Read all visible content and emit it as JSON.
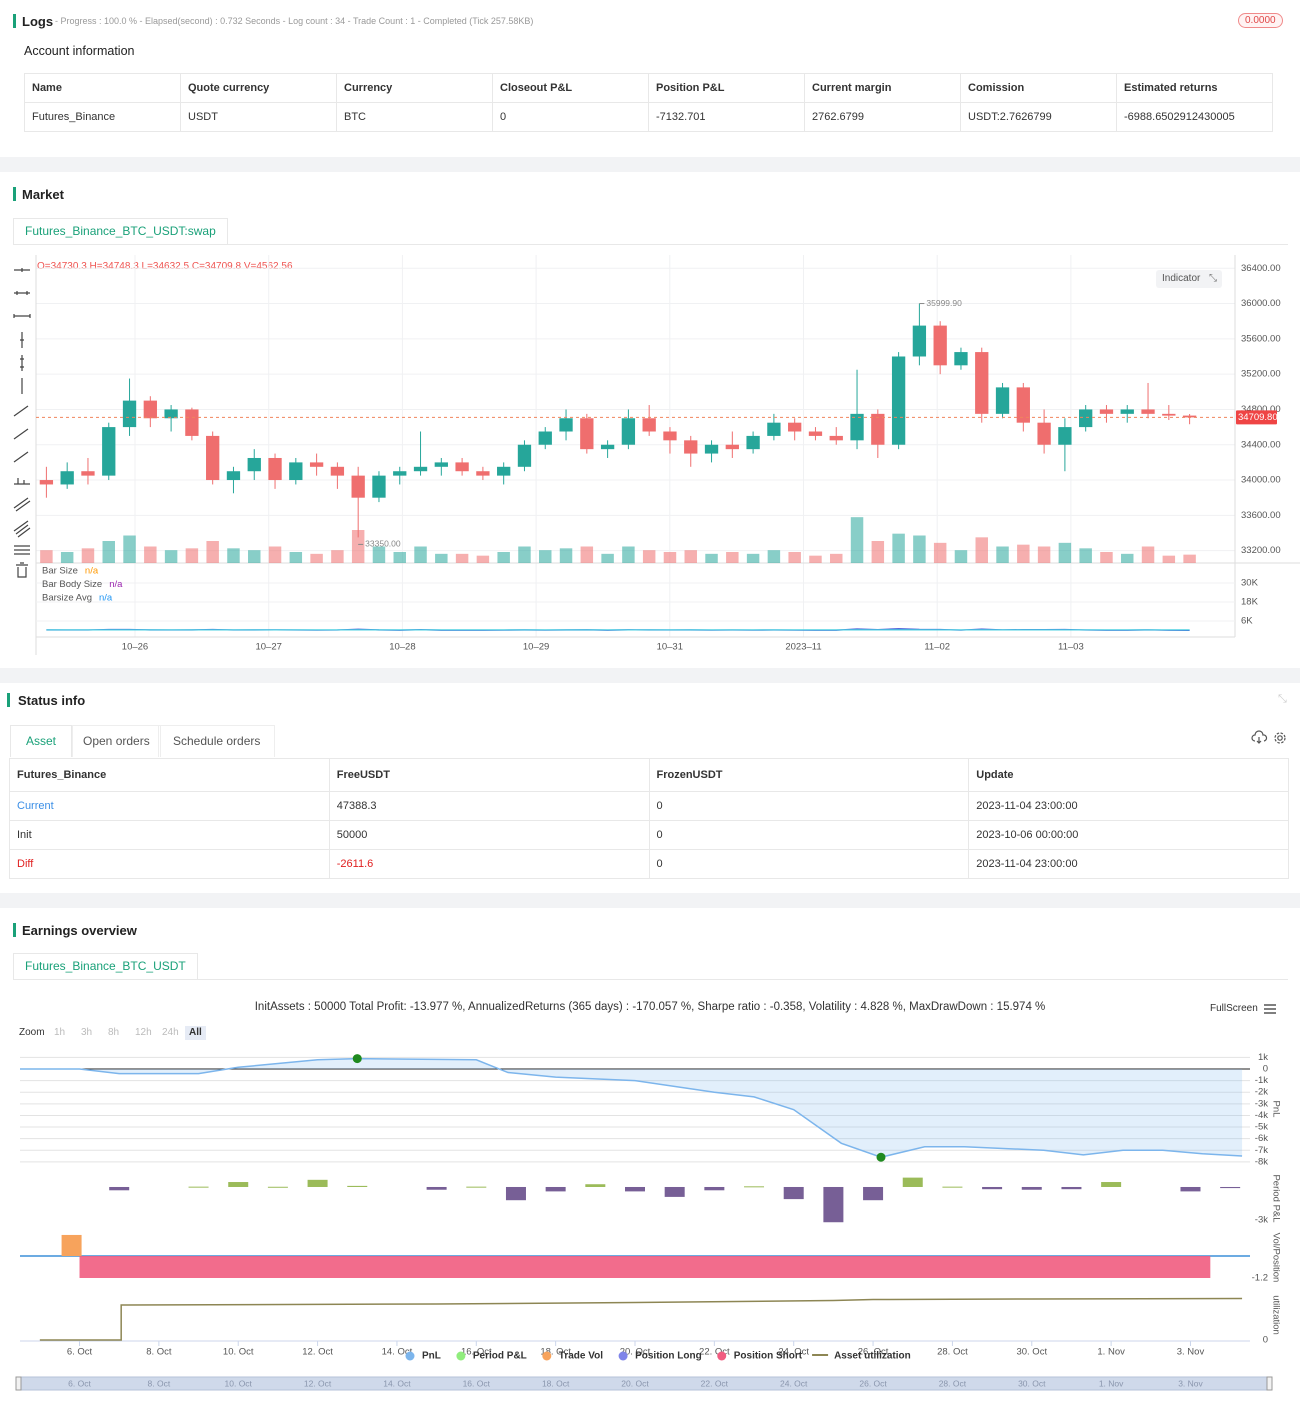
{
  "logs": {
    "title": "Logs",
    "status": "- Progress : 100.0 % - Elapsed(second) : 0.732  Seconds - Log count : 34 - Trade Count : 1 - Completed (Tick 257.58KB)",
    "badge": "0.0000"
  },
  "account": {
    "title": "Account information",
    "table": {
      "headers": [
        "Name",
        "Quote currency",
        "Currency",
        "Closeout P&L",
        "Position P&L",
        "Current margin",
        "Comission",
        "Estimated returns"
      ],
      "rows": [
        [
          "Futures_Binance",
          "USDT",
          "BTC",
          "0",
          "-7132.701",
          "2762.6799",
          "USDT:2.7626799",
          "-6988.6502912430005"
        ]
      ]
    }
  },
  "market": {
    "title": "Market",
    "tab": "Futures_Binance_BTC_USDT:swap",
    "ohlc": "O=34730.3 H=34748.3 L=34632.5 C=34709.8 V=4562.56",
    "indicator_button": "Indicator"
  },
  "status": {
    "title": "Status info",
    "tabs": [
      "Asset",
      "Open orders",
      "Schedule orders"
    ],
    "table": {
      "headers": [
        "Futures_Binance",
        "FreeUSDT",
        "FrozenUSDT",
        "Update"
      ],
      "rows": [
        [
          "Current",
          "47388.3",
          "0",
          "2023-11-04 23:00:00"
        ],
        [
          "Init",
          "50000",
          "0",
          "2023-10-06 00:00:00"
        ],
        [
          "Diff",
          "-2611.6",
          "0",
          "2023-11-04 23:00:00"
        ]
      ]
    }
  },
  "earnings": {
    "title": "Earnings overview",
    "tab": "Futures_Binance_BTC_USDT",
    "summary": "InitAssets : 50000 Total Profit: -13.977 %, AnnualizedReturns (365 days) : -170.057 %, Sharpe ratio : -0.358, Volatility : 4.828 %, MaxDrawDown : 15.974 %",
    "fullscreen": "FullScreen",
    "zoom": {
      "label": "Zoom",
      "buttons": [
        "1h",
        "3h",
        "8h",
        "12h",
        "24h",
        "All"
      ]
    }
  },
  "chart_data": [
    {
      "type": "candlestick",
      "x_labels": [
        "10–26",
        "10–27",
        "10–28",
        "10–29",
        "10–31",
        "2023–11",
        "11–02",
        "11–03"
      ],
      "ylim": [
        33060,
        36550
      ],
      "yticks": [
        {
          "value": 33200,
          "label": "33200.00"
        },
        {
          "value": 33600,
          "label": "33600.00"
        },
        {
          "value": 34000,
          "label": "34000.00"
        },
        {
          "value": 34400,
          "label": "34400.00"
        },
        {
          "value": 34800,
          "label": "34800.00"
        },
        {
          "value": 35200,
          "label": "35200.00"
        },
        {
          "value": 35600,
          "label": "35600.00"
        },
        {
          "value": 36000,
          "label": "36000.00"
        },
        {
          "value": 36400,
          "label": "36400.00"
        }
      ],
      "colors": {
        "up": "#26a69a",
        "down": "#ef6e6e",
        "last": "#f0845c"
      },
      "open": [
        34000,
        33950,
        34100,
        34050,
        34600,
        34900,
        34700,
        34800,
        34500,
        34000,
        34100,
        34250,
        34000,
        34200,
        34150,
        34050,
        33800,
        34050,
        34100,
        34150,
        34200,
        34100,
        34050,
        34150,
        34400,
        34550,
        34700,
        34350,
        34400,
        34700,
        34550,
        34450,
        34300,
        34400,
        34350,
        34500,
        34650,
        34550,
        34500,
        34450,
        34750,
        34400,
        35400,
        35750,
        35300,
        35450,
        34750,
        35050,
        34650,
        34400,
        34600,
        34800,
        34750,
        34800,
        34750,
        34730.3
      ],
      "high": [
        34150,
        34200,
        34250,
        34650,
        35150,
        34950,
        34850,
        34820,
        34550,
        34150,
        34350,
        34300,
        34250,
        34300,
        34200,
        34150,
        34100,
        34150,
        34550,
        34250,
        34250,
        34150,
        34200,
        34450,
        34600,
        34800,
        34750,
        34450,
        34800,
        34850,
        34600,
        34500,
        34450,
        34550,
        34550,
        34750,
        34700,
        34600,
        34600,
        35250,
        34800,
        35450,
        36000,
        35800,
        35500,
        35500,
        35100,
        35100,
        34800,
        34700,
        34850,
        34850,
        34850,
        35100,
        34850,
        34748.3
      ],
      "low": [
        33800,
        33900,
        33950,
        34000,
        34500,
        34600,
        34550,
        34450,
        33950,
        33850,
        34000,
        33900,
        33950,
        34050,
        33900,
        33350,
        33750,
        33950,
        34050,
        34050,
        34050,
        34000,
        33950,
        34100,
        34350,
        34450,
        34300,
        34250,
        34350,
        34500,
        34300,
        34150,
        34200,
        34250,
        34300,
        34450,
        34450,
        34450,
        34400,
        34350,
        34250,
        34350,
        35300,
        35200,
        35250,
        34650,
        34700,
        34550,
        34300,
        34100,
        34550,
        34650,
        34650,
        34700,
        34680,
        34632.5
      ],
      "close": [
        33950,
        34100,
        34050,
        34600,
        34900,
        34700,
        34800,
        34500,
        34000,
        34100,
        34250,
        34000,
        34200,
        34150,
        34050,
        33800,
        34050,
        34100,
        34150,
        34200,
        34100,
        34050,
        34150,
        34400,
        34550,
        34700,
        34350,
        34400,
        34700,
        34550,
        34450,
        34300,
        34400,
        34350,
        34500,
        34650,
        34550,
        34500,
        34450,
        34750,
        34400,
        35400,
        35750,
        35300,
        35450,
        34750,
        35050,
        34650,
        34400,
        34600,
        34800,
        34750,
        34800,
        34750,
        34730,
        34709.8
      ],
      "volume": [
        7000,
        6000,
        8000,
        12000,
        15000,
        9000,
        7000,
        8000,
        12000,
        8000,
        7000,
        9000,
        6000,
        5000,
        7000,
        18000,
        9000,
        6000,
        9000,
        5000,
        5000,
        4000,
        6000,
        9000,
        7000,
        8000,
        9000,
        5000,
        9000,
        7000,
        6000,
        7000,
        5000,
        6000,
        5000,
        7000,
        6000,
        4000,
        5000,
        25000,
        12000,
        16000,
        15000,
        11000,
        7000,
        14000,
        9000,
        10000,
        9000,
        11000,
        8000,
        6000,
        5000,
        9000,
        4000,
        4562.56
      ],
      "vlim": [
        0,
        30000
      ],
      "last_price": {
        "value": 34709.8,
        "label": "34709.80"
      },
      "high_label": {
        "value": 35999.9,
        "label": "35999.90"
      },
      "low_label": {
        "value": 33350,
        "label": "33350.00"
      },
      "indicator": {
        "legend": [
          {
            "name": "Bar Size",
            "value": "n/a",
            "color": "#ff9800"
          },
          {
            "name": "Bar Body Size",
            "value": "n/a",
            "color": "#9c27b0"
          },
          {
            "name": "Barsize Avg",
            "value": "n/a",
            "color": "#2196f3"
          }
        ],
        "ylim": [
          0,
          41400
        ],
        "yticks": [
          {
            "value": 6000,
            "label": "6K"
          },
          {
            "value": 18000,
            "label": "18K"
          },
          {
            "value": 30000,
            "label": "30K"
          }
        ],
        "series": [
          {
            "color": "#3f51d5",
            "values": [
              350,
              300,
              300,
              650,
              650,
              350,
              300,
              370,
              600,
              300,
              350,
              400,
              300,
              250,
              300,
              800,
              350,
              200,
              500,
              200,
              200,
              150,
              250,
              350,
              250,
              350,
              450,
              200,
              450,
              350,
              300,
              350,
              250,
              300,
              250,
              300,
              250,
              150,
              200,
              900,
              550,
              1100,
              700,
              600,
              250,
              850,
              400,
              550,
              500,
              600,
              300,
              200,
              200,
              400,
              170,
              116
            ]
          },
          {
            "color": "#4dd0e1",
            "values": [
              400,
              400,
              400,
              400,
              400,
              400,
              400,
              400,
              400,
              400,
              400,
              400,
              400,
              400,
              400,
              400,
              400,
              400,
              400,
              400,
              400,
              400,
              400,
              400,
              400,
              400,
              400,
              400,
              400,
              400,
              400,
              400,
              400,
              400,
              400,
              400,
              400,
              400,
              400,
              400,
              400,
              400,
              400,
              400,
              400,
              400,
              400,
              400,
              400,
              400,
              400,
              400,
              400,
              400,
              400,
              400
            ]
          }
        ]
      }
    },
    {
      "type": "combo",
      "xlim": [
        4.5,
        35.5
      ],
      "xticks": [
        {
          "value": 6,
          "label": "6. Oct"
        },
        {
          "value": 8,
          "label": "8. Oct"
        },
        {
          "value": 10,
          "label": "10. Oct"
        },
        {
          "value": 12,
          "label": "12. Oct"
        },
        {
          "value": 14,
          "label": "14. Oct"
        },
        {
          "value": 16,
          "label": "16. Oct"
        },
        {
          "value": 18,
          "label": "18. Oct"
        },
        {
          "value": 20,
          "label": "20. Oct"
        },
        {
          "value": 22,
          "label": "22. Oct"
        },
        {
          "value": 24,
          "label": "24. Oct"
        },
        {
          "value": 26,
          "label": "26. Oct"
        },
        {
          "value": 28,
          "label": "28. Oct"
        },
        {
          "value": 30,
          "label": "30. Oct"
        },
        {
          "value": 32,
          "label": "1. Nov"
        },
        {
          "value": 34,
          "label": "3. Nov"
        }
      ],
      "panels": [
        {
          "title": "PnL",
          "ylim": [
            -8530,
            1640
          ],
          "yticks": [
            {
              "value": 1000,
              "label": "1k"
            },
            0,
            {
              "value": -1000,
              "label": "-1k"
            },
            {
              "value": -2000,
              "label": "-2k"
            },
            {
              "value": -3000,
              "label": "-3k"
            },
            {
              "value": -4000,
              "label": "-4k"
            },
            {
              "value": -5000,
              "label": "-5k"
            },
            {
              "value": -6000,
              "label": "-6k"
            },
            {
              "value": -7000,
              "label": "-7k"
            },
            {
              "value": -8000,
              "label": "-8k"
            }
          ]
        },
        {
          "title": "Period P&L",
          "ylim": [
            -3450,
            1360
          ],
          "yticks": [
            {
              "value": -3000,
              "label": "-3k"
            }
          ]
        },
        {
          "title": "Vol/Position",
          "ylim": [
            -1.58,
            1.42
          ],
          "yticks": [
            -1.2
          ]
        },
        {
          "title": "utilization",
          "ylim": [
            0,
            100
          ],
          "yticks": [
            0
          ]
        }
      ],
      "series": [
        {
          "name": "PnL",
          "color": "#7cb5ec",
          "mark": "area",
          "panel": 0,
          "x": [
            4.5,
            6,
            7,
            9,
            10,
            12,
            13,
            16,
            16.8,
            18,
            20,
            22,
            23,
            24,
            25.2,
            26.2,
            27.3,
            28.3,
            30.3,
            31.3,
            32.3,
            33.3,
            34.3,
            35.3
          ],
          "values": [
            0,
            0,
            -400,
            -400,
            150,
            800,
            900,
            800,
            -300,
            -700,
            -1000,
            -2000,
            -2400,
            -3500,
            -6400,
            -7600,
            -6700,
            -6700,
            -7000,
            -7400,
            -7000,
            -7000,
            -7300,
            -7500
          ]
        },
        {
          "name": "Period P&L",
          "color": "#90ed7d",
          "mark": "column",
          "panel": 1,
          "bar_colors": {
            "up": "#9bbb59",
            "down": "#775f96"
          },
          "x": [
            7,
            9,
            10,
            11,
            12,
            13,
            15,
            16,
            17,
            18,
            19,
            20,
            21,
            22,
            23,
            24,
            25,
            26,
            27,
            28,
            29,
            30,
            31,
            32,
            34,
            35
          ],
          "values": [
            -300,
            30,
            450,
            20,
            650,
            100,
            -250,
            30,
            -1200,
            -400,
            250,
            -400,
            -900,
            -300,
            60,
            -1100,
            -3200,
            -1200,
            850,
            30,
            -200,
            -250,
            -200,
            450,
            -400,
            -100
          ]
        },
        {
          "name": "Trade Vol",
          "color": "#f7a35c",
          "mark": "column",
          "panel": 2,
          "x": [
            5.8
          ],
          "values": [
            1.15
          ]
        },
        {
          "name": "Position Long",
          "color": "#8085e9",
          "mark": "area",
          "panel": 2,
          "x": [],
          "values": []
        },
        {
          "name": "Position Short",
          "color": "#f15c80",
          "mark": "area",
          "panel": 2,
          "x": [
            6,
            34.5
          ],
          "values": [
            -1.2,
            -1.2
          ]
        },
        {
          "name": "Asset utilization",
          "color": "#8d8654",
          "mark": "line",
          "panel": 3,
          "x": [
            5,
            7.05,
            7.05,
            15,
            20,
            25,
            26,
            30,
            35.3
          ],
          "values": [
            0,
            0,
            70,
            72,
            75,
            79,
            81,
            82,
            83
          ]
        }
      ]
    }
  ]
}
